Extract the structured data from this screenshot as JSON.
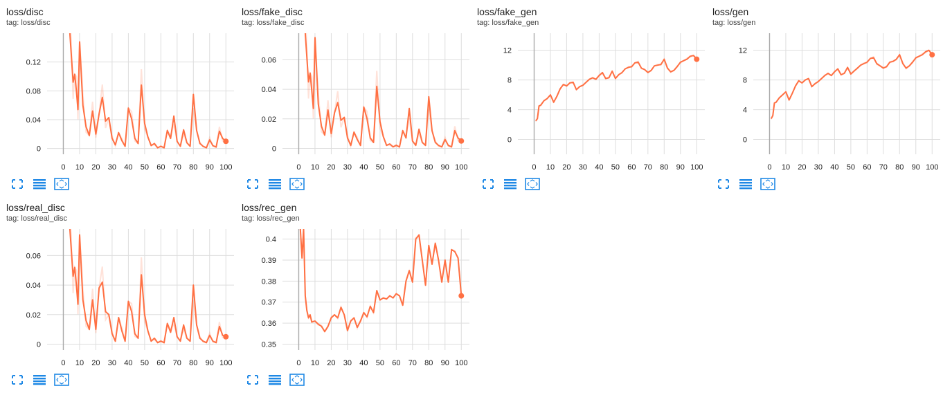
{
  "colors": {
    "series": "#ff7043",
    "smoothed_faint": "#ff7043",
    "grid": "#dddddd",
    "axis": "#aaaaaa",
    "icon": "#1e88e5"
  },
  "icons": {
    "fit": "fit-domain-icon",
    "log": "toggle-log-scale-icon",
    "expand": "expand-chart-icon"
  },
  "cards": [
    {
      "title": "loss/disc",
      "tag": "tag: loss/disc"
    },
    {
      "title": "loss/fake_disc",
      "tag": "tag: loss/fake_disc"
    },
    {
      "title": "loss/fake_gen",
      "tag": "tag: loss/fake_gen"
    },
    {
      "title": "loss/gen",
      "tag": "tag: loss/gen"
    },
    {
      "title": "loss/real_disc",
      "tag": "tag: loss/real_disc"
    },
    {
      "title": "loss/rec_gen",
      "tag": "tag: loss/rec_gen"
    }
  ],
  "chart_data": [
    {
      "type": "line",
      "title": "loss/disc",
      "xlim": [
        -10,
        105
      ],
      "ylim": [
        -0.008,
        0.16
      ],
      "xticks": [
        0,
        10,
        20,
        30,
        40,
        50,
        60,
        70,
        80,
        90,
        100
      ],
      "yticks": [
        0,
        0.04,
        0.08,
        0.12
      ],
      "ytick_labels": [
        "0",
        "0.04",
        "0.08",
        "0.12"
      ],
      "grid": true,
      "series": [
        {
          "x": [
            4,
            6,
            7,
            8,
            9,
            10,
            12,
            14,
            16,
            18,
            20,
            22,
            24,
            26,
            28,
            30,
            32,
            34,
            36,
            38,
            40,
            42,
            44,
            46,
            48,
            50,
            52,
            54,
            56,
            58,
            60,
            62,
            64,
            66,
            68,
            70,
            72,
            74,
            76,
            78,
            80,
            82,
            84,
            86,
            88,
            90,
            92,
            94,
            96,
            98,
            100
          ],
          "y": [
            0.16,
            0.092,
            0.103,
            0.08,
            0.054,
            0.148,
            0.06,
            0.03,
            0.018,
            0.052,
            0.02,
            0.048,
            0.071,
            0.038,
            0.043,
            0.014,
            0.005,
            0.022,
            0.011,
            0.003,
            0.056,
            0.041,
            0.014,
            0.007,
            0.088,
            0.035,
            0.016,
            0.004,
            0.007,
            0.001,
            0.003,
            0.001,
            0.025,
            0.014,
            0.045,
            0.01,
            0.003,
            0.026,
            0.008,
            0.003,
            0.075,
            0.025,
            0.007,
            0.003,
            0.001,
            0.012,
            0.004,
            0.002,
            0.024,
            0.014,
            0.01
          ]
        }
      ]
    },
    {
      "type": "line",
      "title": "loss/fake_disc",
      "xlim": [
        -10,
        105
      ],
      "ylim": [
        -0.004,
        0.078
      ],
      "xticks": [
        0,
        10,
        20,
        30,
        40,
        50,
        60,
        70,
        80,
        90,
        100
      ],
      "yticks": [
        0,
        0.02,
        0.04,
        0.06
      ],
      "ytick_labels": [
        "0",
        "0.02",
        "0.04",
        "0.06"
      ],
      "grid": true,
      "series": [
        {
          "x": [
            4,
            6,
            7,
            8,
            9,
            10,
            12,
            14,
            16,
            18,
            20,
            22,
            24,
            26,
            28,
            30,
            32,
            34,
            36,
            38,
            40,
            42,
            44,
            46,
            48,
            50,
            52,
            54,
            56,
            58,
            60,
            62,
            64,
            66,
            68,
            70,
            72,
            74,
            76,
            78,
            80,
            82,
            84,
            86,
            88,
            90,
            92,
            94,
            96,
            98,
            100
          ],
          "y": [
            0.078,
            0.045,
            0.051,
            0.039,
            0.027,
            0.075,
            0.03,
            0.015,
            0.009,
            0.026,
            0.01,
            0.024,
            0.031,
            0.019,
            0.021,
            0.007,
            0.002,
            0.011,
            0.006,
            0.002,
            0.028,
            0.02,
            0.007,
            0.004,
            0.042,
            0.018,
            0.008,
            0.002,
            0.003,
            0.001,
            0.002,
            0.001,
            0.012,
            0.007,
            0.027,
            0.005,
            0.002,
            0.013,
            0.004,
            0.002,
            0.035,
            0.012,
            0.004,
            0.002,
            0.001,
            0.006,
            0.002,
            0.001,
            0.012,
            0.007,
            0.005
          ]
        }
      ]
    },
    {
      "type": "line",
      "title": "loss/fake_gen",
      "xlim": [
        -10,
        105
      ],
      "ylim": [
        -2,
        14.3
      ],
      "xticks": [
        0,
        10,
        20,
        30,
        40,
        50,
        60,
        70,
        80,
        90,
        100
      ],
      "yticks": [
        0,
        4,
        8,
        12
      ],
      "ytick_labels": [
        "0",
        "4",
        "8",
        "12"
      ],
      "grid": true,
      "series": [
        {
          "x": [
            1,
            2,
            3,
            4,
            6,
            8,
            10,
            12,
            14,
            16,
            18,
            20,
            22,
            24,
            26,
            28,
            30,
            32,
            34,
            36,
            38,
            40,
            42,
            44,
            46,
            48,
            50,
            52,
            54,
            56,
            58,
            60,
            62,
            64,
            66,
            68,
            70,
            72,
            74,
            76,
            78,
            80,
            82,
            84,
            86,
            88,
            90,
            92,
            94,
            96,
            98,
            100
          ],
          "y": [
            2.5,
            2.8,
            4.5,
            4.6,
            5.2,
            5.5,
            6.0,
            5.0,
            5.8,
            6.8,
            7.4,
            7.2,
            7.6,
            7.7,
            6.7,
            7.1,
            7.3,
            7.7,
            8.1,
            8.3,
            8.1,
            8.6,
            9.0,
            8.2,
            8.3,
            9.2,
            8.2,
            8.7,
            9.0,
            9.5,
            9.7,
            9.8,
            10.3,
            10.4,
            9.6,
            9.4,
            9.0,
            9.3,
            9.9,
            10.0,
            10.1,
            10.8,
            9.6,
            9.1,
            9.3,
            9.8,
            10.4,
            10.6,
            10.8,
            11.2,
            11.3,
            10.8
          ]
        }
      ]
    },
    {
      "type": "line",
      "title": "loss/gen",
      "xlim": [
        -10,
        105
      ],
      "ylim": [
        -2,
        14.3
      ],
      "xticks": [
        0,
        10,
        20,
        30,
        40,
        50,
        60,
        70,
        80,
        90,
        100
      ],
      "yticks": [
        0,
        4,
        8,
        12
      ],
      "ytick_labels": [
        "0",
        "4",
        "8",
        "12"
      ],
      "grid": true,
      "series": [
        {
          "x": [
            1,
            2,
            3,
            4,
            6,
            8,
            10,
            12,
            14,
            16,
            18,
            20,
            22,
            24,
            26,
            28,
            30,
            32,
            34,
            36,
            38,
            40,
            42,
            44,
            46,
            48,
            50,
            52,
            54,
            56,
            58,
            60,
            62,
            64,
            66,
            68,
            70,
            72,
            74,
            76,
            78,
            80,
            82,
            84,
            86,
            88,
            90,
            92,
            94,
            96,
            98,
            100
          ],
          "y": [
            2.8,
            3.2,
            4.9,
            5.0,
            5.6,
            6.0,
            6.4,
            5.3,
            6.2,
            7.2,
            7.9,
            7.6,
            8.0,
            8.2,
            7.1,
            7.5,
            7.8,
            8.2,
            8.6,
            8.9,
            8.6,
            9.1,
            9.5,
            8.7,
            8.9,
            9.7,
            8.8,
            9.2,
            9.6,
            10.0,
            10.2,
            10.4,
            10.9,
            11.0,
            10.2,
            9.9,
            9.6,
            9.8,
            10.4,
            10.5,
            10.8,
            11.4,
            10.2,
            9.6,
            9.9,
            10.4,
            11.0,
            11.2,
            11.4,
            11.8,
            12.0,
            11.4
          ]
        }
      ]
    },
    {
      "type": "line",
      "title": "loss/real_disc",
      "xlim": [
        -10,
        105
      ],
      "ylim": [
        -0.004,
        0.078
      ],
      "xticks": [
        0,
        10,
        20,
        30,
        40,
        50,
        60,
        70,
        80,
        90,
        100
      ],
      "yticks": [
        0,
        0.02,
        0.04,
        0.06
      ],
      "ytick_labels": [
        "0",
        "0.02",
        "0.04",
        "0.06"
      ],
      "grid": true,
      "series": [
        {
          "x": [
            4,
            6,
            7,
            8,
            9,
            10,
            12,
            14,
            16,
            18,
            20,
            22,
            24,
            26,
            28,
            30,
            32,
            34,
            36,
            38,
            40,
            42,
            44,
            46,
            48,
            50,
            52,
            54,
            56,
            58,
            60,
            62,
            64,
            66,
            68,
            70,
            72,
            74,
            76,
            78,
            80,
            82,
            84,
            86,
            88,
            90,
            92,
            94,
            96,
            98,
            100
          ],
          "y": [
            0.078,
            0.046,
            0.052,
            0.04,
            0.027,
            0.074,
            0.03,
            0.016,
            0.01,
            0.03,
            0.01,
            0.038,
            0.042,
            0.022,
            0.02,
            0.007,
            0.002,
            0.018,
            0.009,
            0.002,
            0.029,
            0.022,
            0.007,
            0.004,
            0.047,
            0.02,
            0.009,
            0.002,
            0.004,
            0.001,
            0.002,
            0.001,
            0.014,
            0.008,
            0.018,
            0.005,
            0.002,
            0.013,
            0.004,
            0.002,
            0.04,
            0.013,
            0.004,
            0.002,
            0.001,
            0.006,
            0.002,
            0.001,
            0.012,
            0.006,
            0.005
          ]
        }
      ]
    },
    {
      "type": "line",
      "title": "loss/rec_gen",
      "xlim": [
        -10,
        105
      ],
      "ylim": [
        0.3472,
        0.4048
      ],
      "xticks": [
        0,
        10,
        20,
        30,
        40,
        50,
        60,
        70,
        80,
        90,
        100
      ],
      "yticks": [
        0.35,
        0.36,
        0.37,
        0.38,
        0.39,
        0.4
      ],
      "ytick_labels": [
        "0.35",
        "0.36",
        "0.37",
        "0.38",
        "0.39",
        "0.4"
      ],
      "grid": true,
      "series": [
        {
          "x": [
            1,
            2,
            3,
            4,
            5,
            6,
            7,
            8,
            10,
            12,
            14,
            16,
            18,
            20,
            22,
            24,
            26,
            28,
            30,
            32,
            34,
            36,
            38,
            40,
            42,
            44,
            46,
            48,
            50,
            52,
            54,
            56,
            58,
            60,
            62,
            64,
            66,
            68,
            70,
            72,
            74,
            76,
            78,
            80,
            82,
            84,
            86,
            88,
            90,
            92,
            94,
            96,
            98,
            100
          ],
          "y": [
            0.4048,
            0.391,
            0.4048,
            0.373,
            0.366,
            0.3625,
            0.364,
            0.3605,
            0.361,
            0.3595,
            0.3585,
            0.356,
            0.3585,
            0.3625,
            0.364,
            0.3625,
            0.3675,
            0.364,
            0.3565,
            0.361,
            0.3625,
            0.358,
            0.361,
            0.365,
            0.363,
            0.368,
            0.365,
            0.3755,
            0.371,
            0.372,
            0.3715,
            0.373,
            0.372,
            0.374,
            0.373,
            0.3685,
            0.38,
            0.385,
            0.3795,
            0.4,
            0.402,
            0.39,
            0.378,
            0.397,
            0.388,
            0.398,
            0.39,
            0.3795,
            0.39,
            0.3795,
            0.395,
            0.394,
            0.391,
            0.373
          ]
        }
      ]
    }
  ]
}
